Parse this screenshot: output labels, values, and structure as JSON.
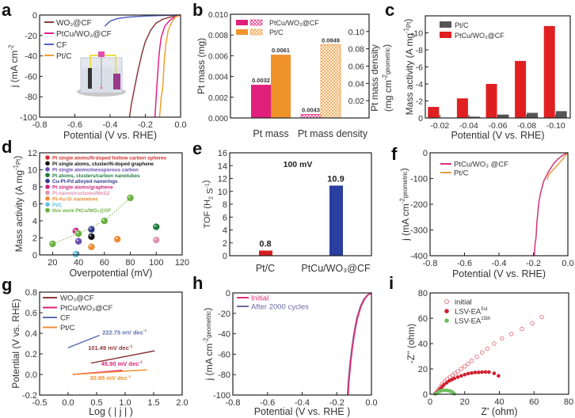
{
  "chart_data": [
    {
      "panel": "a",
      "type": "line",
      "xlabel": "Potential (V vs. RHE)",
      "ylabel": "j (mA cm",
      "ylabel_sup": "-2",
      "ylabel_sub": "geometric",
      "xlim": [
        -0.8,
        0.0
      ],
      "ylim": [
        -100,
        0
      ],
      "xticks": [
        "-0.8",
        "-0.6",
        "-0.4",
        "-0.2",
        "0.0"
      ],
      "yticks": [
        "0",
        "-20",
        "-40",
        "-60",
        "-80",
        "-100"
      ],
      "legend": "top-left",
      "inset": "electrochemical-cell-illustration",
      "series": [
        {
          "name": "WO3@CF",
          "label": "WO₃@CF",
          "color": "#8b3a3a",
          "x": [
            -0.29,
            -0.28,
            -0.26,
            -0.24,
            -0.22,
            -0.2,
            -0.17,
            -0.14,
            -0.1,
            -0.06,
            -0.03,
            0.0
          ],
          "y": [
            -100,
            -88,
            -70,
            -53,
            -38,
            -26,
            -15,
            -8,
            -4,
            -2,
            -1,
            0
          ]
        },
        {
          "name": "PtCu/WO3@CF",
          "label": "PtCu/WO₃@CF",
          "color": "#e0208a",
          "x": [
            -0.145,
            -0.14,
            -0.135,
            -0.13,
            -0.125,
            -0.12,
            -0.11,
            -0.09,
            -0.06,
            -0.03,
            0.0
          ],
          "y": [
            -100,
            -85,
            -70,
            -58,
            -45,
            -35,
            -22,
            -11,
            -5,
            -1.5,
            0
          ]
        },
        {
          "name": "CF",
          "label": "CF",
          "color": "#5060c0",
          "x": [
            -0.43,
            -0.4,
            -0.36,
            -0.3,
            -0.2,
            -0.1,
            0.0
          ],
          "y": [
            -11,
            -6,
            -3.5,
            -2,
            -1,
            -0.4,
            0
          ]
        },
        {
          "name": "Pt/C",
          "label": "Pt/C",
          "color": "#f0a030",
          "x": [
            -0.12,
            -0.115,
            -0.11,
            -0.105,
            -0.1,
            -0.095,
            -0.085,
            -0.07,
            -0.05,
            -0.03,
            0.0
          ],
          "y": [
            -100,
            -92,
            -80,
            -76,
            -68,
            -50,
            -30,
            -15,
            -7,
            -2,
            0
          ]
        }
      ]
    },
    {
      "panel": "b",
      "type": "bar",
      "categories": [
        "Pt mass",
        "Pt mass density"
      ],
      "ylabel": "Pt mass (mg)",
      "ylabel_right": "Pt mass density",
      "ylabel_right2": "(mg cm",
      "ylim": [
        0,
        0.01
      ],
      "ylim_right": [
        0,
        0.12
      ],
      "yticks": [
        "0.000",
        "0.002",
        "0.004",
        "0.006",
        "0.008",
        "0.010"
      ],
      "yticks_right": [
        "0.02",
        "0.04",
        "0.06",
        "0.08",
        "0.10"
      ],
      "legend": "top-left",
      "series": [
        {
          "name": "PtCu/WO3@CF",
          "label": "PtCu/WO₃@CF",
          "color": "#e0207a",
          "values": [
            0.0032,
            0.0043
          ],
          "labels": [
            "0.0032",
            "0.0043"
          ],
          "axis": [
            "left",
            "right"
          ]
        },
        {
          "name": "Pt/C",
          "label": "Pt/C",
          "color": "#f0922a",
          "values": [
            0.0061,
            0.0849
          ],
          "labels": [
            "0.0061",
            "0.0849"
          ],
          "axis": [
            "left",
            "right"
          ]
        }
      ]
    },
    {
      "panel": "c",
      "type": "bar",
      "categories": [
        "-0.02",
        "-0.04",
        "-0.06",
        "-0.08",
        "-0.10"
      ],
      "xlabel": "Potential (V vs. RHE)",
      "ylabel": "Mass activity (A mg",
      "ylabel_sup": "-1",
      "ylabel_sub": "Pt",
      "ylim": [
        0,
        -12
      ],
      "yticks": [
        "0",
        "-2",
        "-4",
        "-6",
        "-8",
        "-10"
      ],
      "legend": "top-left",
      "series": [
        {
          "name": "Pt/C",
          "color": "#555555",
          "values": [
            -0.05,
            -0.15,
            -0.4,
            -0.6,
            -0.8
          ]
        },
        {
          "name": "PtCu/WO3@CF",
          "label": "PtCu/WO₃@CF",
          "color": "#e02020",
          "values": [
            -1.3,
            -2.3,
            -4.0,
            -6.7,
            -10.8
          ]
        }
      ]
    },
    {
      "panel": "d",
      "type": "scatter",
      "xlabel": "Overpotential (mV)",
      "ylabel": "Mass activity (A mg",
      "ylabel_sup": "-1",
      "ylabel_sub": "Pt",
      "xlim": [
        10,
        120
      ],
      "ylim": [
        0,
        12
      ],
      "xticks": [
        "20",
        "40",
        "60",
        "80",
        "100",
        "120"
      ],
      "yticks": [
        "0",
        "2",
        "4",
        "6",
        "8",
        "10",
        "12"
      ],
      "legend": "top-left",
      "series": [
        {
          "name": "Pt single atoms/N-doped  hollow carbon spheres",
          "color": "#d83030",
          "points": [
            [
              50,
              2.1
            ]
          ]
        },
        {
          "name": "Pt single atoms, cluster/N-doped graphene",
          "color": "#111111",
          "points": [
            [
              50,
              2.15
            ]
          ]
        },
        {
          "name": "Pt single atoms/mesoporous carbon",
          "color": "#6a4fb0",
          "points": [
            [
              40,
              1.6
            ]
          ]
        },
        {
          "name": "Pt atoms, clusters/carbon nanotubes",
          "color": "#207a40",
          "points": [
            [
              100,
              3.3
            ]
          ]
        },
        {
          "name": "Cu-Pt-Pd alloyed  nanorings",
          "color": "#303a8a",
          "points": [
            [
              50,
              3.0
            ]
          ]
        },
        {
          "name": "Pt single atoms/graphene",
          "color": "#d02080",
          "points": [
            [
              38,
              2.8
            ]
          ]
        },
        {
          "name": "Pt nanostructures/MoS2",
          "color": "#e090b0",
          "points": [
            [
              100,
              1.75
            ]
          ]
        },
        {
          "name": "Pt-Au-Si nanowires",
          "color": "#f08a30",
          "points": [
            [
              50,
              0.95
            ],
            [
              70,
              1.85
            ]
          ]
        },
        {
          "name": "Pt/C",
          "color": "#60c0e0",
          "points": [
            [
              38,
              0.1
            ]
          ]
        },
        {
          "name": "this work PtCu/WO3@CF",
          "color": "#6ab040",
          "points": [
            [
              20,
              1.3
            ],
            [
              40,
              2.5
            ],
            [
              60,
              4.0
            ],
            [
              80,
              6.7
            ]
          ],
          "fit_line": true
        }
      ]
    },
    {
      "panel": "e",
      "type": "bar",
      "categories": [
        "Pt/C",
        "PtCu/WO₃@CF"
      ],
      "ylabel": "TOF (H",
      "ylabel_sub": "2",
      "ylabel_tail": " S",
      "ylabel_sup": "-1",
      "annotation": "100 mV",
      "ylim": [
        0,
        16
      ],
      "yticks": [
        "0",
        "2",
        "4",
        "6",
        "8",
        "10",
        "12",
        "14",
        "16"
      ],
      "values": [
        0.8,
        10.9
      ],
      "labels": [
        "0.8",
        "10.9"
      ],
      "colors": [
        "#d82020",
        "#2a3fa0"
      ]
    },
    {
      "panel": "f",
      "type": "line",
      "xlabel": "Potential (V vs. RHE)",
      "ylabel": "j (mA cm",
      "ylabel_sup": "-2",
      "ylabel_sub": "geometric",
      "xlim": [
        -0.8,
        0.0
      ],
      "ylim": [
        -400,
        0
      ],
      "xticks": [
        "-0.8",
        "-0.6",
        "-0.4",
        "-0.2",
        "0.0"
      ],
      "yticks": [
        "0",
        "-100",
        "-200",
        "-300",
        "-400"
      ],
      "legend": "top-left",
      "series": [
        {
          "name": "PtCu/WO3 @CF",
          "label": "PtCu/WO₃ @CF",
          "color": "#d8307a",
          "x": [
            -0.195,
            -0.19,
            -0.185,
            -0.18,
            -0.175,
            -0.17,
            -0.16,
            -0.14,
            -0.11,
            -0.08,
            -0.05,
            -0.02,
            0.0
          ],
          "y": [
            -400,
            -350,
            -330,
            -270,
            -240,
            -200,
            -160,
            -110,
            -70,
            -40,
            -20,
            -6,
            0
          ]
        },
        {
          "name": "Pt/C",
          "label": "Pt/C",
          "color": "#e0a040",
          "x": [
            -0.12,
            -0.115,
            -0.1,
            -0.09,
            -0.07,
            -0.05,
            -0.03,
            -0.01,
            0.0
          ],
          "y": [
            -105,
            -90,
            -75,
            -70,
            -55,
            -40,
            -25,
            -8,
            0
          ]
        }
      ]
    },
    {
      "panel": "g",
      "type": "line",
      "xlabel": "Log ( | j | )",
      "ylabel": "Potential (V vs. RHE)",
      "xlim": [
        -0.5,
        2.0
      ],
      "ylim": [
        -0.2,
        0.8
      ],
      "xticks": [
        "-0.5",
        "0.0",
        "0.5",
        "1.0",
        "1.5",
        "2.0"
      ],
      "yticks": [
        "-0.2",
        "0.0",
        "0.2",
        "0.4",
        "0.6",
        "0.8"
      ],
      "legend": "top-left",
      "series": [
        {
          "name": "WO3@CF",
          "label": "WO₃@CF",
          "color": "#8b3a3a",
          "x": [
            0.4,
            1.52
          ],
          "y": [
            0.11,
            0.23
          ],
          "annotation": "101.49 mV dec",
          "ann_xy": [
            0.35,
            0.24
          ]
        },
        {
          "name": "PtCu/WO3@CF",
          "label": "PtCu/WO₃@CF",
          "color": "#e0207a",
          "x": [
            0.08,
            0.95
          ],
          "y": [
            0.0,
            0.04
          ],
          "annotation": "45.90 mV dec",
          "ann_xy": [
            0.58,
            0.085
          ]
        },
        {
          "name": "CF",
          "label": "CF",
          "color": "#6070b0",
          "x": [
            0.0,
            0.55
          ],
          "y": [
            0.26,
            0.38
          ],
          "annotation": "222.75 mV dec",
          "ann_xy": [
            0.6,
            0.39
          ]
        },
        {
          "name": "Pt/C",
          "label": "Pt/C",
          "color": "#f09030",
          "x": [
            0.08,
            1.38
          ],
          "y": [
            0.0,
            0.045
          ],
          "annotation": "30.95 mV dec",
          "ann_xy": [
            0.38,
            -0.055
          ]
        }
      ]
    },
    {
      "panel": "h",
      "type": "line",
      "xlabel": "Potential (V vs. RHE )",
      "ylabel": "j (mA cm",
      "ylabel_sup": "-2",
      "ylabel_sub": "geometric",
      "xlim": [
        -0.8,
        0.0
      ],
      "ylim": [
        -100,
        0
      ],
      "xticks": [
        "-0.8",
        "-0.6",
        "-0.4",
        "-0.2",
        "0.0"
      ],
      "yticks": [
        "0",
        "-20",
        "-40",
        "-60",
        "-80",
        "-100"
      ],
      "legend": "top-left",
      "series": [
        {
          "name": "Initial",
          "color": "#e0307a",
          "x": [
            -0.135,
            -0.13,
            -0.12,
            -0.11,
            -0.1,
            -0.09,
            -0.08,
            -0.06,
            -0.04,
            -0.02,
            0.0
          ],
          "y": [
            -100,
            -86,
            -68,
            -54,
            -42,
            -32,
            -24,
            -13,
            -6,
            -2,
            0
          ]
        },
        {
          "name": "After 2000 cycles",
          "color": "#6a6a9a",
          "x": [
            -0.138,
            -0.133,
            -0.123,
            -0.113,
            -0.103,
            -0.093,
            -0.083,
            -0.063,
            -0.043,
            -0.022,
            0.0
          ],
          "y": [
            -100,
            -86,
            -68,
            -54,
            -42,
            -32,
            -24,
            -13,
            -6,
            -2,
            0
          ]
        }
      ]
    },
    {
      "panel": "i",
      "type": "scatter",
      "xlabel": "Z' (ohm)",
      "ylabel": "-Z'' (ohm)",
      "xlim": [
        0,
        80
      ],
      "ylim": [
        0,
        80
      ],
      "xticks": [
        "0",
        "20",
        "40",
        "60",
        "80"
      ],
      "yticks": [
        "0",
        "20",
        "40",
        "60",
        "80"
      ],
      "legend": "top-left",
      "series": [
        {
          "name": "initial",
          "color": "#e06070",
          "marker": "open-circle",
          "points": [
            [
              3,
              0.5
            ],
            [
              4,
              2
            ],
            [
              5,
              4
            ],
            [
              6,
              6
            ],
            [
              7,
              8
            ],
            [
              8.5,
              10
            ],
            [
              10,
              12
            ],
            [
              11.5,
              13.5
            ],
            [
              13,
              15
            ],
            [
              14.5,
              16.5
            ],
            [
              16,
              18
            ],
            [
              18,
              20
            ],
            [
              20,
              22
            ],
            [
              22,
              24
            ],
            [
              24,
              26.5
            ],
            [
              27,
              29.5
            ],
            [
              30,
              33
            ],
            [
              33,
              36
            ],
            [
              37,
              40
            ],
            [
              41.5,
              44
            ],
            [
              47,
              47.5
            ],
            [
              53,
              51.5
            ],
            [
              59,
              56
            ],
            [
              64.5,
              61
            ]
          ]
        },
        {
          "name": "LSV-EA",
          "sup": "5st",
          "color": "#d02030",
          "marker": "filled-circle",
          "points": [
            [
              3,
              0.3
            ],
            [
              4,
              1.5
            ],
            [
              5,
              3
            ],
            [
              6,
              4.5
            ],
            [
              7,
              6
            ],
            [
              8,
              7.5
            ],
            [
              9.5,
              9
            ],
            [
              11,
              10.5
            ],
            [
              12.5,
              11.5
            ],
            [
              14,
              12.5
            ],
            [
              16,
              13.5
            ],
            [
              18,
              14.5
            ],
            [
              20,
              15.5
            ],
            [
              22,
              16.3
            ],
            [
              24,
              16.8
            ],
            [
              26,
              17.2
            ],
            [
              28,
              17.3
            ],
            [
              30,
              17.5
            ],
            [
              32,
              17.6
            ],
            [
              34,
              17.5
            ],
            [
              37,
              16.5
            ],
            [
              39.5,
              14.5
            ]
          ]
        },
        {
          "name": "LSV-EA",
          "sup": "15th",
          "color": "#70c060",
          "marker": "filled-circle",
          "points": [
            [
              3,
              0.2
            ],
            [
              4,
              1
            ],
            [
              5,
              2
            ],
            [
              6,
              2.6
            ],
            [
              7,
              3
            ],
            [
              8,
              3.1
            ],
            [
              9,
              3.1
            ],
            [
              10,
              3
            ],
            [
              11,
              2.8
            ],
            [
              12,
              2.3
            ],
            [
              13,
              1.6
            ],
            [
              13.5,
              1
            ],
            [
              14,
              0.3
            ]
          ]
        }
      ]
    }
  ]
}
